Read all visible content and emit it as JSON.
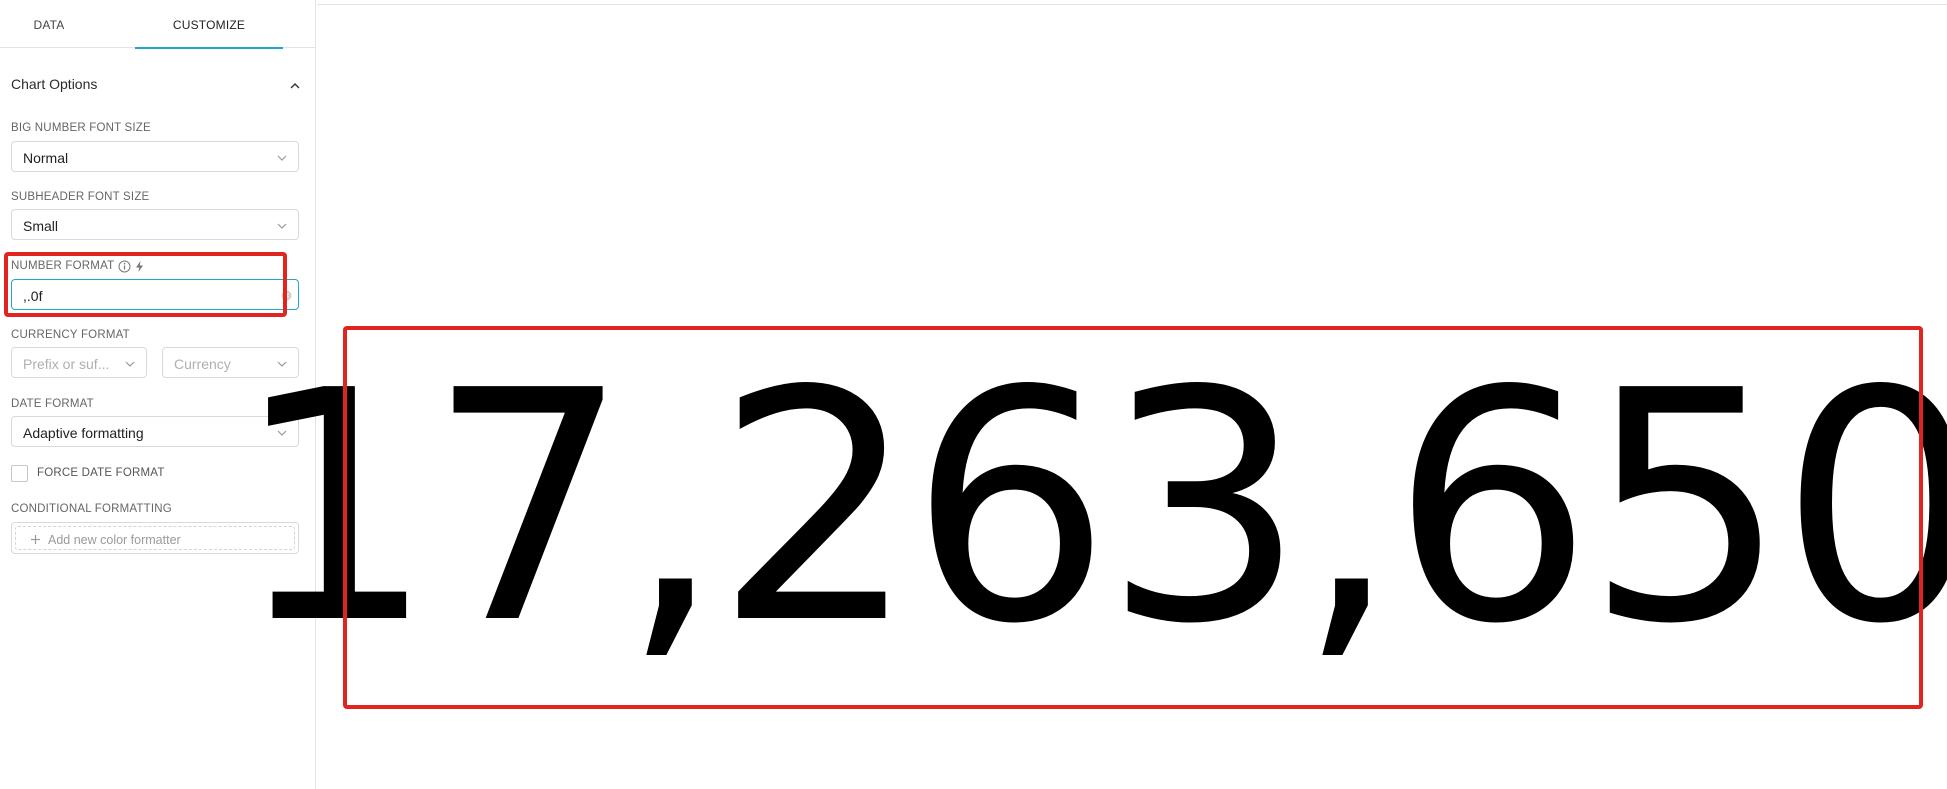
{
  "tabs": [
    {
      "label": "DATA",
      "active": false
    },
    {
      "label": "CUSTOMIZE",
      "active": true
    }
  ],
  "chart_options": {
    "title": "Chart Options",
    "big_number_font_size": {
      "label": "BIG NUMBER FONT SIZE",
      "value": "Normal"
    },
    "subheader_font_size": {
      "label": "SUBHEADER FONT SIZE",
      "value": "Small"
    },
    "number_format": {
      "label": "NUMBER FORMAT",
      "value": ",.0f"
    },
    "currency_format": {
      "label": "CURRENCY FORMAT",
      "prefix_placeholder": "Prefix or suf...",
      "currency_placeholder": "Currency"
    },
    "date_format": {
      "label": "DATE FORMAT",
      "value": "Adaptive formatting"
    },
    "force_date_format": {
      "label": "FORCE DATE FORMAT",
      "checked": false
    },
    "conditional_formatting": {
      "label": "CONDITIONAL FORMATTING",
      "add_label": "Add new color formatter"
    }
  },
  "big_number": {
    "display": "17,263,650"
  },
  "colors": {
    "accent": "#20a7c9",
    "highlight": "#e02420"
  }
}
